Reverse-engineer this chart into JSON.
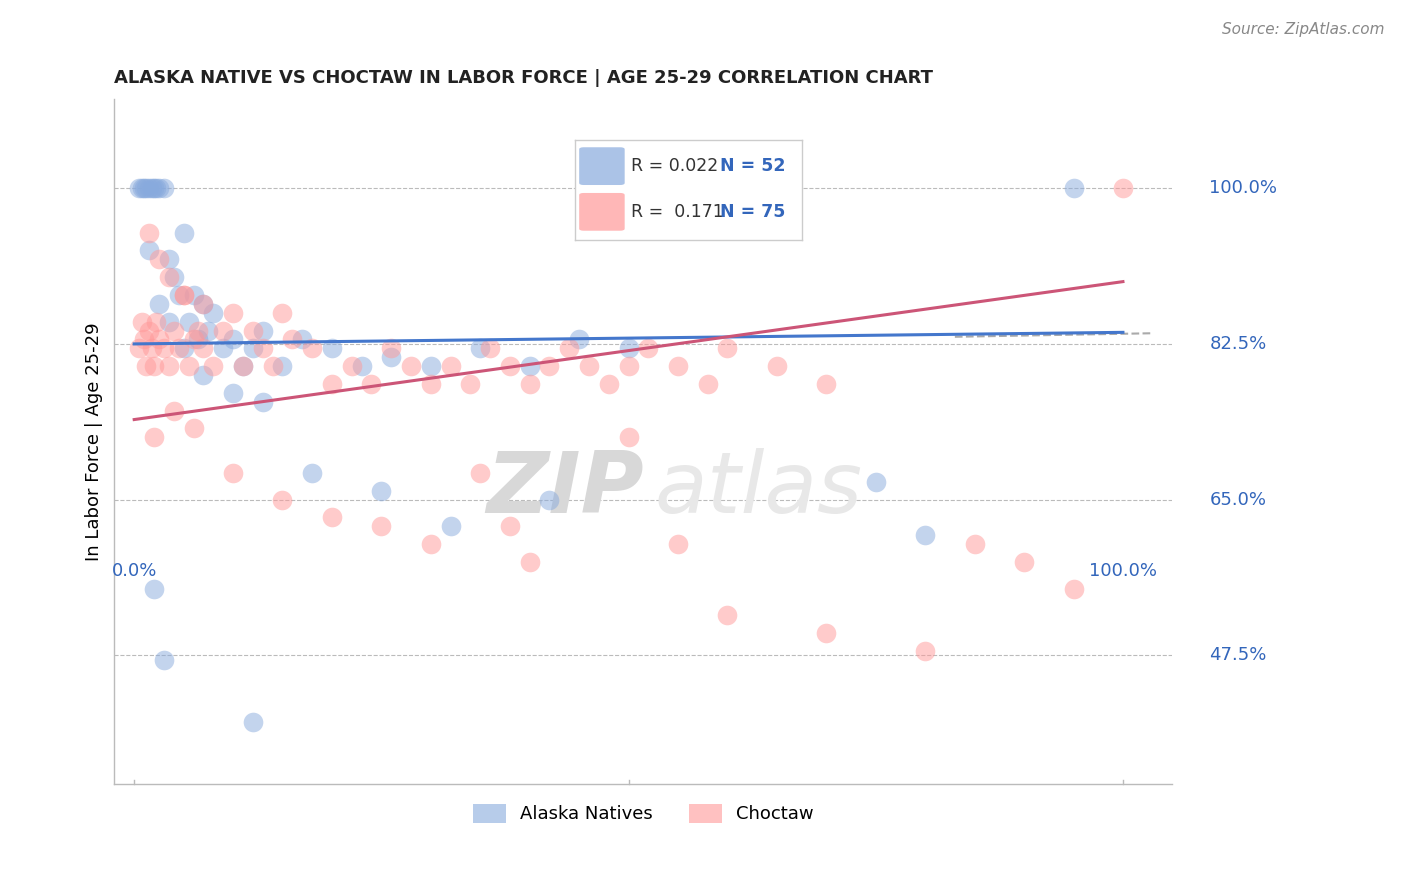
{
  "title": "ALASKA NATIVE VS CHOCTAW IN LABOR FORCE | AGE 25-29 CORRELATION CHART",
  "source": "Source: ZipAtlas.com",
  "ylabel": "In Labor Force | Age 25-29",
  "ytick_values": [
    0.475,
    0.65,
    0.825,
    1.0
  ],
  "ytick_labels": [
    "47.5%",
    "65.0%",
    "82.5%",
    "100.0%"
  ],
  "xlim": [
    -0.02,
    1.05
  ],
  "ylim": [
    0.33,
    1.1
  ],
  "r_alaska": "0.022",
  "n_alaska": "52",
  "r_choctaw": "0.171",
  "n_choctaw": "75",
  "color_alaska": "#88AADD",
  "color_choctaw": "#FF9999",
  "color_trendline_alaska": "#4477CC",
  "color_trendline_choctaw": "#CC5577",
  "watermark_zip": "ZIP",
  "watermark_atlas": "atlas",
  "legend_r_color": "#333333",
  "legend_n_color": "#3366BB",
  "title_color": "#222222",
  "source_color": "#888888",
  "yaxis_color": "#3366BB",
  "alaska_x": [
    0.005,
    0.008,
    0.01,
    0.012,
    0.015,
    0.018,
    0.02,
    0.022,
    0.025,
    0.03,
    0.035,
    0.04,
    0.045,
    0.05,
    0.055,
    0.06,
    0.065,
    0.07,
    0.075,
    0.08,
    0.09,
    0.1,
    0.11,
    0.12,
    0.13,
    0.15,
    0.17,
    0.2,
    0.23,
    0.26,
    0.3,
    0.35,
    0.4,
    0.45,
    0.5,
    0.015,
    0.025,
    0.035,
    0.05,
    0.07,
    0.1,
    0.13,
    0.18,
    0.25,
    0.32,
    0.42,
    0.75,
    0.8,
    0.95,
    0.02,
    0.03,
    0.12
  ],
  "alaska_y": [
    1.0,
    1.0,
    1.0,
    1.0,
    1.0,
    1.0,
    1.0,
    1.0,
    1.0,
    1.0,
    0.92,
    0.9,
    0.88,
    0.95,
    0.85,
    0.88,
    0.83,
    0.87,
    0.84,
    0.86,
    0.82,
    0.83,
    0.8,
    0.82,
    0.84,
    0.8,
    0.83,
    0.82,
    0.8,
    0.81,
    0.8,
    0.82,
    0.8,
    0.83,
    0.82,
    0.93,
    0.87,
    0.85,
    0.82,
    0.79,
    0.77,
    0.76,
    0.68,
    0.66,
    0.62,
    0.65,
    0.67,
    0.61,
    1.0,
    0.55,
    0.47,
    0.4
  ],
  "choctaw_x": [
    0.005,
    0.008,
    0.01,
    0.012,
    0.015,
    0.018,
    0.02,
    0.022,
    0.025,
    0.03,
    0.035,
    0.04,
    0.045,
    0.05,
    0.055,
    0.06,
    0.065,
    0.07,
    0.08,
    0.09,
    0.1,
    0.11,
    0.12,
    0.13,
    0.14,
    0.15,
    0.16,
    0.18,
    0.2,
    0.22,
    0.24,
    0.26,
    0.28,
    0.3,
    0.32,
    0.34,
    0.36,
    0.38,
    0.4,
    0.42,
    0.44,
    0.46,
    0.48,
    0.5,
    0.52,
    0.55,
    0.58,
    0.6,
    0.65,
    0.7,
    0.015,
    0.025,
    0.035,
    0.05,
    0.07,
    0.1,
    0.15,
    0.2,
    0.25,
    0.3,
    0.35,
    0.4,
    0.5,
    0.6,
    0.7,
    0.8,
    0.85,
    0.9,
    0.95,
    1.0,
    0.02,
    0.04,
    0.06,
    0.55,
    0.38
  ],
  "choctaw_y": [
    0.82,
    0.85,
    0.83,
    0.8,
    0.84,
    0.82,
    0.8,
    0.85,
    0.83,
    0.82,
    0.8,
    0.84,
    0.82,
    0.88,
    0.8,
    0.83,
    0.84,
    0.82,
    0.8,
    0.84,
    0.86,
    0.8,
    0.84,
    0.82,
    0.8,
    0.86,
    0.83,
    0.82,
    0.78,
    0.8,
    0.78,
    0.82,
    0.8,
    0.78,
    0.8,
    0.78,
    0.82,
    0.8,
    0.78,
    0.8,
    0.82,
    0.8,
    0.78,
    0.8,
    0.82,
    0.8,
    0.78,
    0.82,
    0.8,
    0.78,
    0.95,
    0.92,
    0.9,
    0.88,
    0.87,
    0.68,
    0.65,
    0.63,
    0.62,
    0.6,
    0.68,
    0.58,
    0.72,
    0.52,
    0.5,
    0.48,
    0.6,
    0.58,
    0.55,
    1.0,
    0.72,
    0.75,
    0.73,
    0.6,
    0.62
  ]
}
